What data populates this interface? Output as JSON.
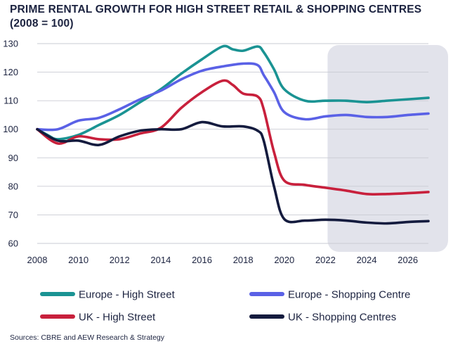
{
  "title_line1": "PRIME RENTAL GROWTH FOR HIGH STREET RETAIL & SHOPPING CENTRES",
  "title_line2": "(2008 = 100)",
  "source": "Sources: CBRE and AEW Research & Strategy",
  "chart_data": {
    "type": "line",
    "title": "PRIME RENTAL GROWTH FOR HIGH STREET RETAIL & SHOPPING CENTRES (2008 = 100)",
    "xlabel": "",
    "ylabel": "",
    "xlim": [
      2008,
      2027
    ],
    "ylim": [
      60,
      130
    ],
    "xticks": [
      2008,
      2010,
      2012,
      2014,
      2016,
      2018,
      2020,
      2022,
      2024,
      2026
    ],
    "yticks": [
      60,
      70,
      80,
      90,
      100,
      110,
      120,
      130
    ],
    "grid": "horizontal",
    "legend_position": "bottom",
    "forecast_shading": [
      2022,
      2027
    ],
    "series": [
      {
        "name": "Europe - High Street",
        "color": "#1a9393",
        "points": [
          [
            2008,
            100
          ],
          [
            2008.5,
            98
          ],
          [
            2009,
            96.5
          ],
          [
            2010,
            98
          ],
          [
            2011,
            101.5
          ],
          [
            2012,
            105
          ],
          [
            2013,
            109.5
          ],
          [
            2014,
            114
          ],
          [
            2015,
            119.5
          ],
          [
            2016,
            124.5
          ],
          [
            2017,
            129
          ],
          [
            2017.5,
            128
          ],
          [
            2018,
            127.5
          ],
          [
            2018.7,
            129
          ],
          [
            2019,
            127
          ],
          [
            2019.5,
            121
          ],
          [
            2020,
            114
          ],
          [
            2021,
            110
          ],
          [
            2022,
            110
          ],
          [
            2023,
            110
          ],
          [
            2024,
            109.5
          ],
          [
            2025,
            110
          ],
          [
            2026,
            110.5
          ],
          [
            2027,
            111
          ]
        ]
      },
      {
        "name": "Europe - Shopping Centre",
        "color": "#5a61e6",
        "points": [
          [
            2008,
            100
          ],
          [
            2009,
            100
          ],
          [
            2010,
            103
          ],
          [
            2011,
            104
          ],
          [
            2012,
            107
          ],
          [
            2013,
            110.5
          ],
          [
            2014,
            113.5
          ],
          [
            2015,
            117.5
          ],
          [
            2016,
            120.5
          ],
          [
            2017,
            122
          ],
          [
            2018,
            123
          ],
          [
            2018.7,
            122.5
          ],
          [
            2019,
            119
          ],
          [
            2019.5,
            113
          ],
          [
            2020,
            106
          ],
          [
            2021,
            103.5
          ],
          [
            2022,
            104.5
          ],
          [
            2023,
            105
          ],
          [
            2024,
            104.3
          ],
          [
            2025,
            104.3
          ],
          [
            2026,
            105
          ],
          [
            2027,
            105.5
          ]
        ]
      },
      {
        "name": "UK - High Street",
        "color": "#c8203c",
        "points": [
          [
            2008,
            100
          ],
          [
            2009,
            95
          ],
          [
            2010,
            97.5
          ],
          [
            2011,
            96.5
          ],
          [
            2012,
            96.5
          ],
          [
            2013,
            98.5
          ],
          [
            2014,
            100.5
          ],
          [
            2015,
            107.5
          ],
          [
            2016,
            113
          ],
          [
            2017,
            117
          ],
          [
            2017.5,
            115.5
          ],
          [
            2018,
            112.5
          ],
          [
            2018.7,
            111.5
          ],
          [
            2019,
            107
          ],
          [
            2019.5,
            92
          ],
          [
            2020,
            82
          ],
          [
            2021,
            80.5
          ],
          [
            2022,
            79.5
          ],
          [
            2023,
            78.5
          ],
          [
            2024,
            77.3
          ],
          [
            2025,
            77.3
          ],
          [
            2026,
            77.6
          ],
          [
            2027,
            78
          ]
        ]
      },
      {
        "name": "UK - Shopping Centres",
        "color": "#141b3e",
        "points": [
          [
            2008,
            100
          ],
          [
            2009,
            96
          ],
          [
            2010,
            96
          ],
          [
            2011,
            94.5
          ],
          [
            2012,
            97.5
          ],
          [
            2013,
            99.5
          ],
          [
            2014,
            100
          ],
          [
            2015,
            100
          ],
          [
            2016,
            102.5
          ],
          [
            2017,
            101
          ],
          [
            2018,
            101
          ],
          [
            2018.7,
            99.5
          ],
          [
            2019,
            96
          ],
          [
            2019.5,
            80
          ],
          [
            2020,
            68.5
          ],
          [
            2021,
            68
          ],
          [
            2022,
            68.3
          ],
          [
            2023,
            68
          ],
          [
            2024,
            67.3
          ],
          [
            2025,
            67
          ],
          [
            2026,
            67.5
          ],
          [
            2027,
            67.8
          ]
        ]
      }
    ]
  }
}
